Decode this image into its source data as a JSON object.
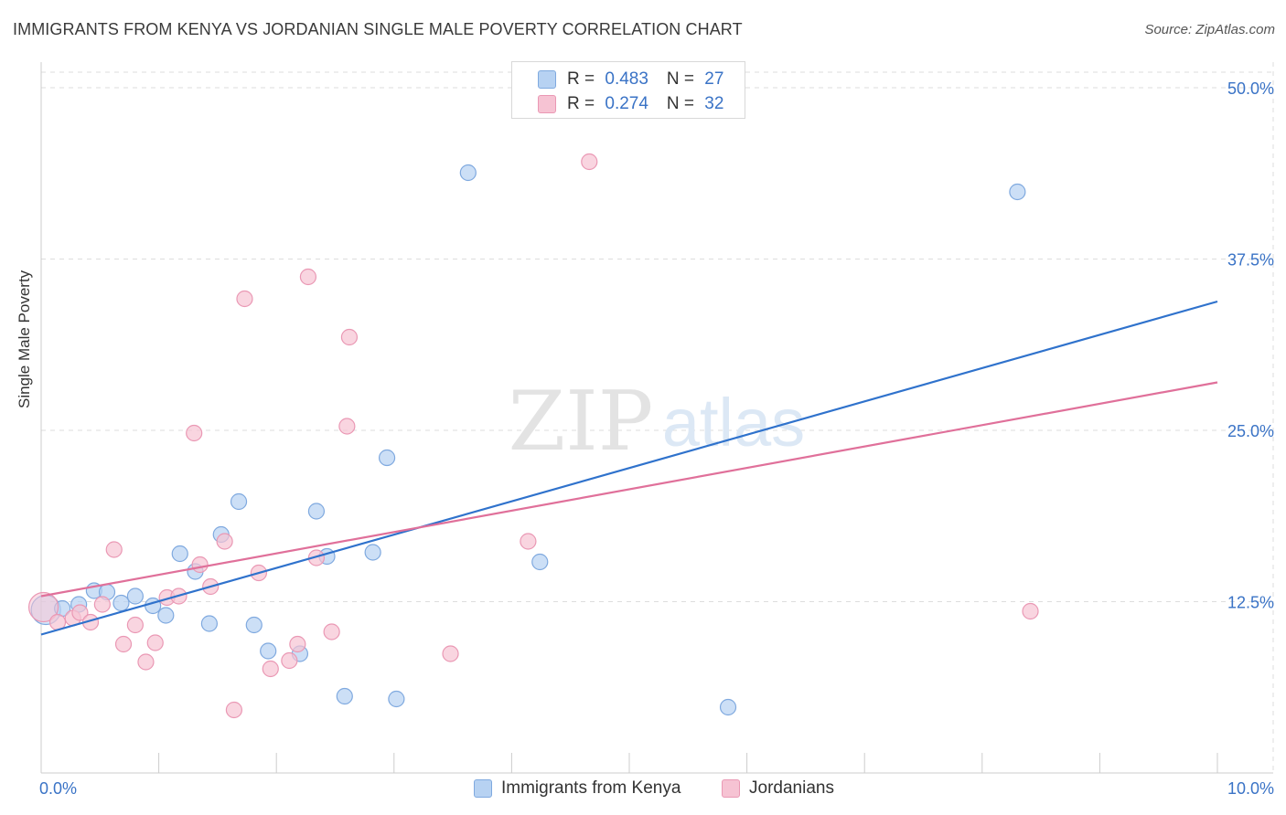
{
  "title": "IMMIGRANTS FROM KENYA VS JORDANIAN SINGLE MALE POVERTY CORRELATION CHART",
  "source": "Source: ZipAtlas.com",
  "watermark": {
    "zip": "ZIP",
    "atlas": "atlas"
  },
  "colors": {
    "blue_fill": "#b7d2f2",
    "blue_stroke": "#7fa9df",
    "blue_line": "#2f72cc",
    "pink_fill": "#f6c3d3",
    "pink_stroke": "#ea98b4",
    "pink_line": "#e0709a",
    "tick_text": "#3a73c6",
    "grid": "#dddddd"
  },
  "legend_top": {
    "rows": [
      {
        "r_label": "R = ",
        "r_value": "0.483",
        "n_label": "N = ",
        "n_value": "27"
      },
      {
        "r_label": "R = ",
        "r_value": "0.274",
        "n_label": "N = ",
        "n_value": "32"
      }
    ]
  },
  "legend_bottom": {
    "items": [
      {
        "label": "Immigrants from Kenya"
      },
      {
        "label": "Jordanians"
      }
    ]
  },
  "chart_data": {
    "type": "scatter",
    "title": "IMMIGRANTS FROM KENYA VS JORDANIAN SINGLE MALE POVERTY CORRELATION CHART",
    "xlabel": "",
    "ylabel": "Single Male Poverty",
    "xlim": [
      0,
      10
    ],
    "ylim": [
      0,
      50
    ],
    "x_tick_labels": [
      "0.0%",
      "10.0%"
    ],
    "y_ticks": [
      12.5,
      25.0,
      37.5,
      50.0
    ],
    "y_tick_labels": [
      "12.5%",
      "25.0%",
      "37.5%",
      "50.0%"
    ],
    "grid": true,
    "legend_position": "top-center",
    "series": [
      {
        "name": "Immigrants from Kenya",
        "r": 0.483,
        "n": 27,
        "trend": {
          "x": [
            0,
            10
          ],
          "y": [
            10.1,
            34.4
          ]
        },
        "points": [
          {
            "x": 0.04,
            "y": 11.9,
            "big": true
          },
          {
            "x": 0.18,
            "y": 12.0
          },
          {
            "x": 0.32,
            "y": 12.3
          },
          {
            "x": 0.45,
            "y": 13.3
          },
          {
            "x": 0.56,
            "y": 13.2
          },
          {
            "x": 0.68,
            "y": 12.4
          },
          {
            "x": 0.8,
            "y": 12.9
          },
          {
            "x": 0.95,
            "y": 12.2
          },
          {
            "x": 1.06,
            "y": 11.5
          },
          {
            "x": 1.18,
            "y": 16.0
          },
          {
            "x": 1.31,
            "y": 14.7
          },
          {
            "x": 1.43,
            "y": 10.9
          },
          {
            "x": 1.53,
            "y": 17.4
          },
          {
            "x": 1.68,
            "y": 19.8
          },
          {
            "x": 1.81,
            "y": 10.8
          },
          {
            "x": 1.93,
            "y": 8.9
          },
          {
            "x": 2.2,
            "y": 8.7
          },
          {
            "x": 2.34,
            "y": 19.1
          },
          {
            "x": 2.43,
            "y": 15.8
          },
          {
            "x": 2.58,
            "y": 5.6
          },
          {
            "x": 2.82,
            "y": 16.1
          },
          {
            "x": 2.94,
            "y": 23.0
          },
          {
            "x": 3.02,
            "y": 5.4
          },
          {
            "x": 3.63,
            "y": 43.8
          },
          {
            "x": 4.24,
            "y": 15.4
          },
          {
            "x": 5.84,
            "y": 4.8
          },
          {
            "x": 8.3,
            "y": 42.4
          }
        ]
      },
      {
        "name": "Jordanians",
        "r": 0.274,
        "n": 32,
        "trend": {
          "x": [
            0,
            10
          ],
          "y": [
            12.9,
            28.5
          ]
        },
        "points": [
          {
            "x": 0.02,
            "y": 12.1,
            "big": true
          },
          {
            "x": 0.14,
            "y": 11.0
          },
          {
            "x": 0.27,
            "y": 11.3
          },
          {
            "x": 0.33,
            "y": 11.7
          },
          {
            "x": 0.42,
            "y": 11.0
          },
          {
            "x": 0.52,
            "y": 12.3
          },
          {
            "x": 0.62,
            "y": 16.3
          },
          {
            "x": 0.7,
            "y": 9.4
          },
          {
            "x": 0.8,
            "y": 10.8
          },
          {
            "x": 0.89,
            "y": 8.1
          },
          {
            "x": 0.97,
            "y": 9.5
          },
          {
            "x": 1.07,
            "y": 12.8
          },
          {
            "x": 1.17,
            "y": 12.9
          },
          {
            "x": 1.3,
            "y": 24.8
          },
          {
            "x": 1.35,
            "y": 15.2
          },
          {
            "x": 1.44,
            "y": 13.6
          },
          {
            "x": 1.56,
            "y": 16.9
          },
          {
            "x": 1.64,
            "y": 4.6
          },
          {
            "x": 1.73,
            "y": 34.6
          },
          {
            "x": 1.85,
            "y": 14.6
          },
          {
            "x": 1.95,
            "y": 7.6
          },
          {
            "x": 2.11,
            "y": 8.2
          },
          {
            "x": 2.18,
            "y": 9.4
          },
          {
            "x": 2.27,
            "y": 36.2
          },
          {
            "x": 2.34,
            "y": 15.7
          },
          {
            "x": 2.47,
            "y": 10.3
          },
          {
            "x": 2.6,
            "y": 25.3
          },
          {
            "x": 2.62,
            "y": 31.8
          },
          {
            "x": 3.48,
            "y": 8.7
          },
          {
            "x": 4.14,
            "y": 16.9
          },
          {
            "x": 4.66,
            "y": 44.6
          },
          {
            "x": 8.41,
            "y": 11.8
          }
        ]
      }
    ]
  }
}
